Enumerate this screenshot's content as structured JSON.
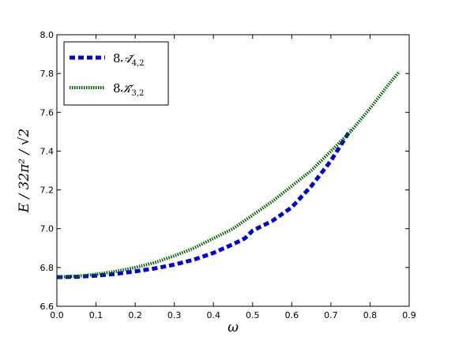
{
  "chart_data": {
    "type": "line",
    "title": "",
    "xlabel": "ω",
    "ylabel": "E / 32π² / √2",
    "xlim": [
      0.0,
      0.9
    ],
    "ylim": [
      6.6,
      8.0
    ],
    "xticks": [
      "0.0",
      "0.1",
      "0.2",
      "0.3",
      "0.4",
      "0.5",
      "0.6",
      "0.7",
      "0.8",
      "0.9"
    ],
    "yticks": [
      "6.6",
      "6.8",
      "7.0",
      "7.2",
      "7.4",
      "7.6",
      "7.8",
      "8.0"
    ],
    "grid": false,
    "legend": "top-left",
    "series": [
      {
        "name": "8Ã4,2",
        "legend_main": "8",
        "legend_letter": "𝒜",
        "legend_sub": "4,2",
        "color": "#0000cc",
        "style": "dashed",
        "x": [
          0.0,
          0.05,
          0.1,
          0.15,
          0.2,
          0.25,
          0.3,
          0.35,
          0.4,
          0.45,
          0.48,
          0.5,
          0.55,
          0.6,
          0.65,
          0.7,
          0.75
        ],
        "y": [
          6.75,
          6.752,
          6.758,
          6.767,
          6.78,
          6.795,
          6.815,
          6.84,
          6.875,
          6.92,
          6.95,
          6.99,
          7.04,
          7.11,
          7.22,
          7.35,
          7.51
        ]
      },
      {
        "name": "8K̃3,2",
        "legend_main": "8",
        "legend_letter": "𝒦",
        "legend_sub": "3,2",
        "color": "#006400",
        "style": "dotted",
        "x": [
          0.0,
          0.05,
          0.1,
          0.15,
          0.2,
          0.25,
          0.3,
          0.35,
          0.4,
          0.45,
          0.5,
          0.55,
          0.6,
          0.65,
          0.7,
          0.75,
          0.8,
          0.85,
          0.875
        ],
        "y": [
          6.75,
          6.755,
          6.765,
          6.78,
          6.8,
          6.825,
          6.86,
          6.9,
          6.95,
          7.0,
          7.07,
          7.14,
          7.22,
          7.3,
          7.4,
          7.5,
          7.62,
          7.75,
          7.81
        ]
      }
    ]
  }
}
